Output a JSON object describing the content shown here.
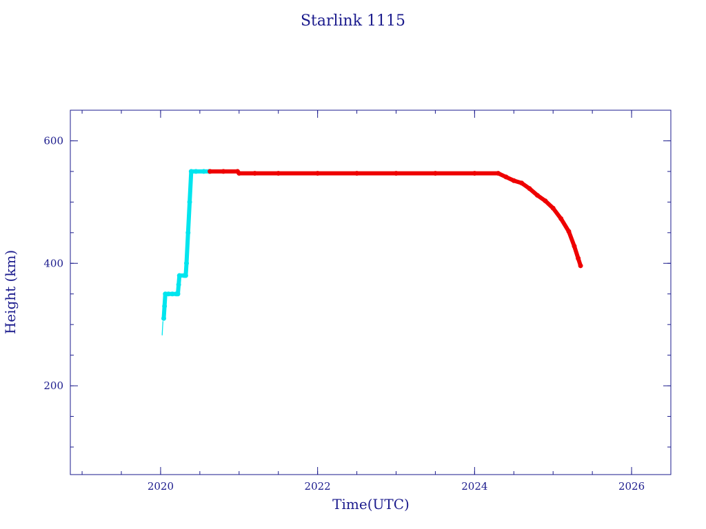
{
  "chart_data": {
    "type": "scatter",
    "title": "Starlink 1115",
    "xlabel": "Time(UTC)",
    "ylabel": "Height (km)",
    "xlim": [
      2018.85,
      2026.5
    ],
    "ylim": [
      55,
      650
    ],
    "x_major_ticks": [
      2020,
      2022,
      2024,
      2026
    ],
    "x_minor_step": 0.5,
    "y_major_ticks": [
      200,
      400,
      600
    ],
    "y_minor_step": 50,
    "grid": false,
    "legend": "none",
    "colors": {
      "axis": "#1a1a8c",
      "cyan": "#00e5ee",
      "red": "#ee0000",
      "thin": "#1a1a8c"
    },
    "series": [
      {
        "color": "cyan",
        "mark": "thin-line",
        "points": [
          [
            2020.02,
            283
          ],
          [
            2020.025,
            295
          ],
          [
            2020.03,
            305
          ]
        ]
      },
      {
        "color": "cyan",
        "mark": "thick",
        "points": [
          [
            2020.04,
            310
          ],
          [
            2020.05,
            330
          ],
          [
            2020.06,
            350
          ],
          [
            2020.1,
            350
          ],
          [
            2020.15,
            350
          ],
          [
            2020.2,
            350
          ],
          [
            2020.22,
            350
          ],
          [
            2020.23,
            365
          ],
          [
            2020.24,
            380
          ],
          [
            2020.3,
            380
          ],
          [
            2020.32,
            380
          ],
          [
            2020.33,
            400
          ],
          [
            2020.35,
            450
          ],
          [
            2020.37,
            500
          ],
          [
            2020.39,
            550
          ],
          [
            2020.45,
            550
          ],
          [
            2020.55,
            550
          ],
          [
            2020.62,
            550
          ]
        ]
      },
      {
        "color": "red",
        "mark": "thick",
        "points": [
          [
            2020.63,
            550
          ],
          [
            2020.8,
            550
          ],
          [
            2020.98,
            550
          ],
          [
            2021.0,
            547
          ],
          [
            2021.2,
            547
          ],
          [
            2021.5,
            547
          ],
          [
            2022.0,
            547
          ],
          [
            2022.5,
            547
          ],
          [
            2023.0,
            547
          ],
          [
            2023.5,
            547
          ],
          [
            2024.0,
            547
          ],
          [
            2024.3,
            547
          ],
          [
            2024.4,
            541
          ],
          [
            2024.5,
            535
          ],
          [
            2024.6,
            531
          ],
          [
            2024.7,
            522
          ],
          [
            2024.8,
            511
          ],
          [
            2024.9,
            502
          ],
          [
            2025.0,
            490
          ],
          [
            2025.1,
            473
          ],
          [
            2025.2,
            452
          ],
          [
            2025.27,
            428
          ],
          [
            2025.32,
            408
          ],
          [
            2025.35,
            396
          ]
        ]
      }
    ]
  }
}
